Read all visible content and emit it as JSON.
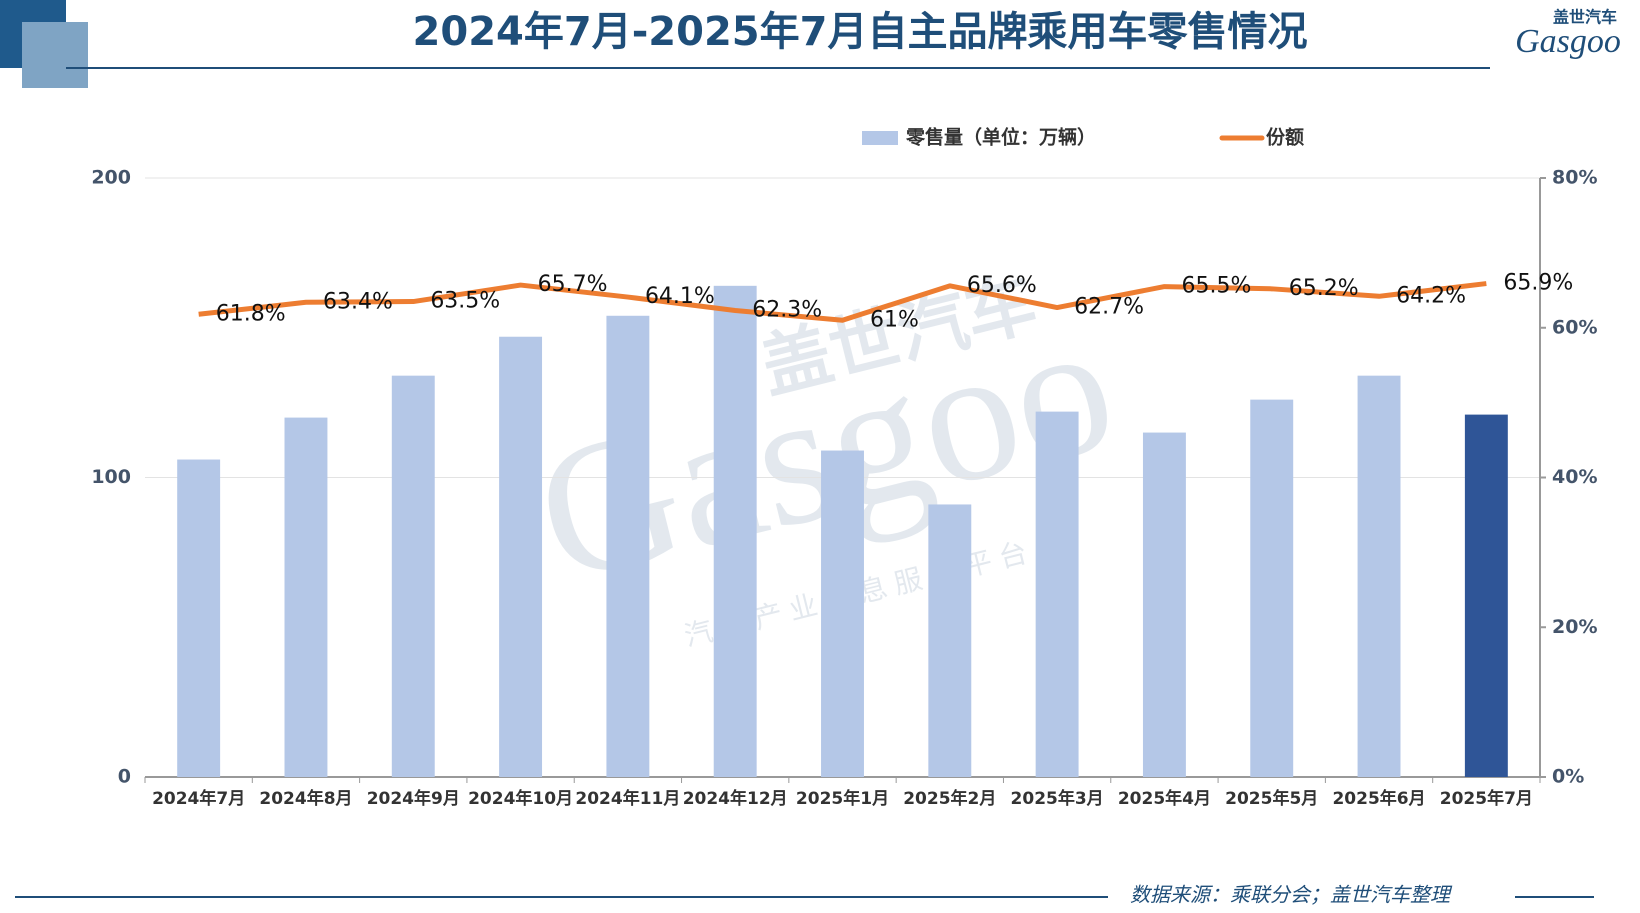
{
  "header": {
    "logo_cn": "盖世汽车",
    "logo_en": "Gasgoo"
  },
  "watermark": {
    "cn": "盖世汽车",
    "en": "Gasgoo",
    "tagline": "汽车产业信息服务平台"
  },
  "source": "数据来源：乘联分会；盖世汽车整理",
  "chart_data": {
    "type": "bar-line",
    "title": "2024年7月-2025年7月自主品牌乘用车零售情况",
    "categories": [
      "2024年7月",
      "2024年8月",
      "2024年9月",
      "2024年10月",
      "2024年11月",
      "2024年12月",
      "2025年1月",
      "2025年2月",
      "2025年3月",
      "2025年4月",
      "2025年5月",
      "2025年6月",
      "2025年7月"
    ],
    "series": [
      {
        "name": "零售量（单位：万辆）",
        "type": "bar",
        "color": "#b4c7e7",
        "colors": [
          "#b4c7e7",
          "#b4c7e7",
          "#b4c7e7",
          "#b4c7e7",
          "#b4c7e7",
          "#b4c7e7",
          "#b4c7e7",
          "#b4c7e7",
          "#b4c7e7",
          "#b4c7e7",
          "#b4c7e7",
          "#b4c7e7",
          "#2f5597"
        ],
        "values": [
          106,
          120,
          134,
          147,
          154,
          164,
          109,
          91,
          122,
          115,
          126,
          134,
          121
        ]
      },
      {
        "name": "份额",
        "type": "line",
        "axis": "y2",
        "color": "#ed7d31",
        "values": [
          61.8,
          63.4,
          63.5,
          65.7,
          64.1,
          62.3,
          61,
          65.6,
          62.7,
          65.5,
          65.2,
          64.2,
          65.9
        ],
        "value_labels": [
          "61.8%",
          "63.4%",
          "63.5%",
          "65.7%",
          "64.1%",
          "62.3%",
          "61%",
          "65.6%",
          "62.7%",
          "65.5%",
          "65.2%",
          "64.2%",
          "65.9%"
        ]
      }
    ],
    "ylim": [
      0,
      200
    ],
    "yticks": [
      0,
      100,
      200
    ],
    "y2lim": [
      0,
      80
    ],
    "y2ticks": [
      {
        "value": 0,
        "label": "0%"
      },
      {
        "value": 20,
        "label": "20%"
      },
      {
        "value": 40,
        "label": "40%"
      },
      {
        "value": 60,
        "label": "60%"
      },
      {
        "value": 80,
        "label": "80%"
      }
    ],
    "grid": true,
    "legend": "top"
  }
}
